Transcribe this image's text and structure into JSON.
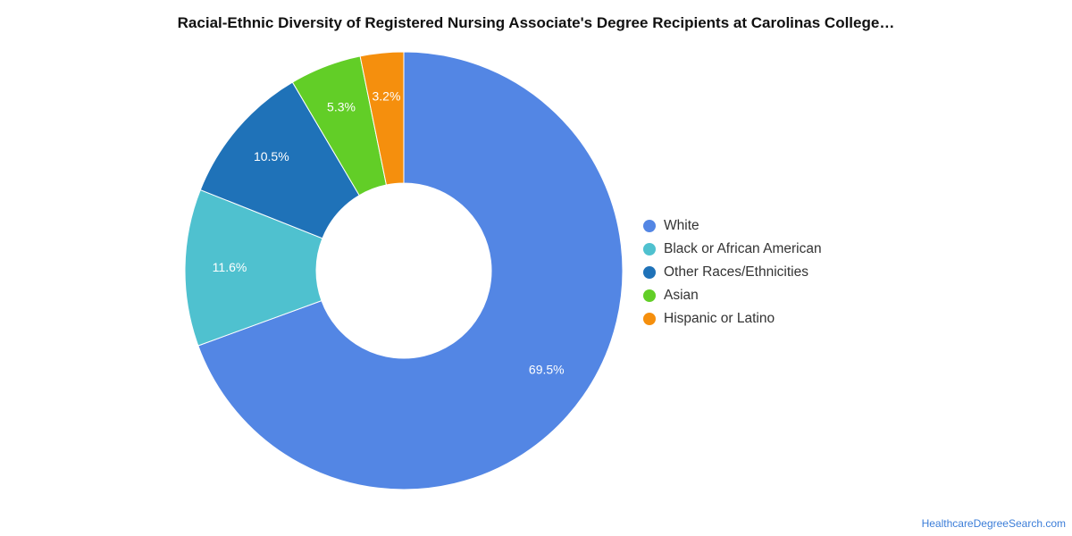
{
  "chart_data": {
    "type": "pie",
    "title": "Racial-Ethnic Diversity of Registered Nursing Associate's Degree Recipients at Carolinas College…",
    "donut": true,
    "legend_position": "right",
    "slices": [
      {
        "label": "White",
        "value": 69.5,
        "value_label": "69.5%",
        "color": "#5386e4"
      },
      {
        "label": "Black or African American",
        "value": 11.6,
        "value_label": "11.6%",
        "color": "#4fc1cf"
      },
      {
        "label": "Other Races/Ethnicities",
        "value": 10.5,
        "value_label": "10.5%",
        "color": "#1f72b8"
      },
      {
        "label": "Asian",
        "value": 5.3,
        "value_label": "5.3%",
        "color": "#62ce27"
      },
      {
        "label": "Hispanic or Latino",
        "value": 3.2,
        "value_label": "3.2%",
        "color": "#f58f0d"
      }
    ]
  },
  "footer": {
    "source": "HealthcareDegreeSearch.com"
  }
}
